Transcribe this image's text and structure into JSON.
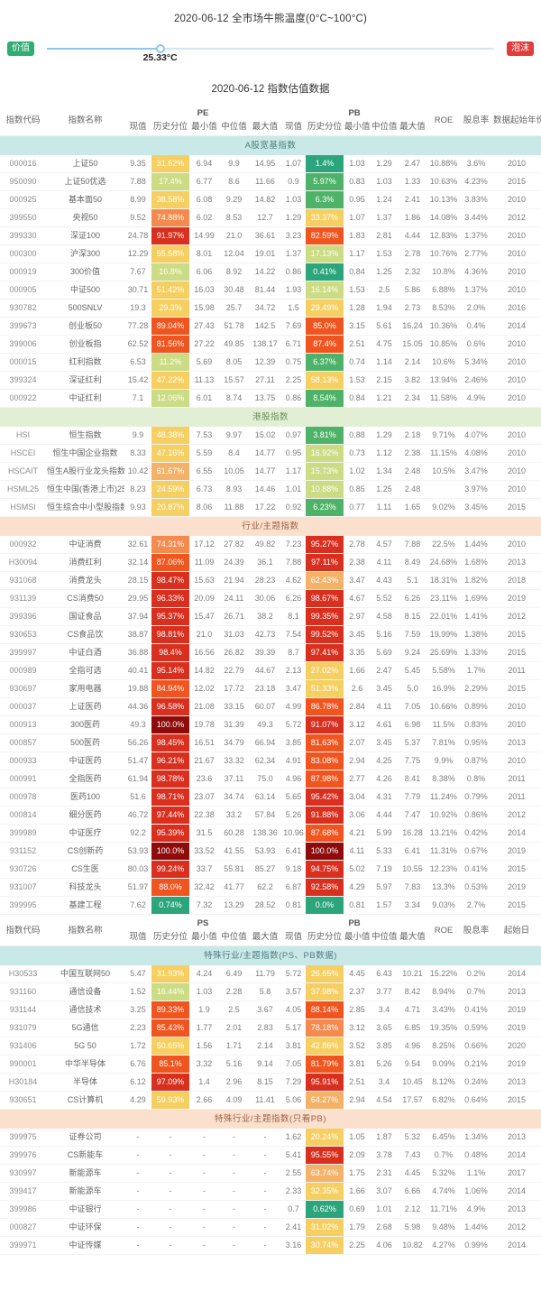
{
  "thermometer": {
    "title": "2020-06-12 全市场牛熊温度(0°C~100°C)",
    "left_badge": "价值",
    "right_badge": "泡沫",
    "value_label": "25.33°C",
    "percent": 25.33,
    "left_color": "#2fae71",
    "right_color": "#e23c3c"
  },
  "table_title": "2020-06-12 指数估值数据",
  "headers": {
    "first": {
      "code": "指数代码",
      "name": "指数名称",
      "group1": "PE",
      "group2": "PB",
      "sub": [
        "现值",
        "历史分位",
        "最小值",
        "中位值",
        "最大值"
      ],
      "roe": "ROE",
      "dividend": "股息率",
      "start": "数据起始年份"
    },
    "second": {
      "code": "指数代码",
      "name": "指数名称",
      "group1": "PS",
      "group2": "PB",
      "sub": [
        "现值",
        "历史分位",
        "最小值",
        "中位值",
        "最大值"
      ],
      "roe": "ROE",
      "dividend": "股息率",
      "start": "起始日"
    }
  },
  "palette": {
    "percentile_scale": [
      {
        "min": 99.99,
        "color": "#8e0b0b"
      },
      {
        "min": 90,
        "color": "#d92f1e"
      },
      {
        "min": 80,
        "color": "#f1551f"
      },
      {
        "min": 66,
        "color": "#f58a4e"
      },
      {
        "min": 60,
        "color": "#f4b269"
      },
      {
        "min": 18,
        "color": "#f6cf63"
      },
      {
        "min": 10,
        "color": "#cbdc85"
      },
      {
        "min": 3,
        "color": "#4fb269"
      },
      {
        "min": 0,
        "color": "#2ca57c"
      }
    ]
  },
  "sections": [
    {
      "header": "first",
      "title": "A股宽基指数",
      "theme": "cyan",
      "rows": [
        [
          "000016",
          "上证50",
          "9.35",
          "31.62%",
          "6.94",
          "9.9",
          "14.95",
          "1.07",
          "1.4%",
          "1.03",
          "1.29",
          "2.47",
          "10.88%",
          "3.6%",
          "2010"
        ],
        [
          "950090",
          "上证50优选",
          "7.88",
          "17.4%",
          "6.77",
          "8.6",
          "11.66",
          "0.9",
          "5.97%",
          "0.83",
          "1.03",
          "1.33",
          "10.63%",
          "4.23%",
          "2015"
        ],
        [
          "000925",
          "基本面50",
          "8.99",
          "38.58%",
          "6.08",
          "9.29",
          "14.82",
          "1.03",
          "6.3%",
          "0.95",
          "1.24",
          "2.41",
          "10.13%",
          "3.83%",
          "2010"
        ],
        [
          "399550",
          "央视50",
          "9.52",
          "74.88%",
          "6.02",
          "8.53",
          "12.7",
          "1.29",
          "33.37%",
          "1.07",
          "1.37",
          "1.86",
          "14.08%",
          "3.44%",
          "2012"
        ],
        [
          "399330",
          "深证100",
          "24.78",
          "91.97%",
          "14.99",
          "21.0",
          "36.61",
          "3.23",
          "82.59%",
          "1.83",
          "2.81",
          "4.44",
          "12.83%",
          "1.37%",
          "2010"
        ],
        [
          "000300",
          "沪深300",
          "12.29",
          "55.58%",
          "8.01",
          "12.04",
          "19.01",
          "1.37",
          "17.13%",
          "1.17",
          "1.53",
          "2.78",
          "10.76%",
          "2.77%",
          "2010"
        ],
        [
          "000919",
          "300价值",
          "7.67",
          "16.8%",
          "6.06",
          "8.92",
          "14.22",
          "0.86",
          "0.41%",
          "0.84",
          "1.25",
          "2.32",
          "10.8%",
          "4.36%",
          "2010"
        ],
        [
          "000905",
          "中证500",
          "30.71",
          "51.42%",
          "16.03",
          "30.48",
          "81.44",
          "1.93",
          "16.14%",
          "1.53",
          "2.5",
          "5.86",
          "6.88%",
          "1.37%",
          "2010"
        ],
        [
          "930782",
          "500SNLV",
          "19.3",
          "29.3%",
          "15.98",
          "25.7",
          "34.72",
          "1.5",
          "29.49%",
          "1.28",
          "1.94",
          "2.73",
          "8.53%",
          "2.0%",
          "2016"
        ],
        [
          "399673",
          "创业板50",
          "77.28",
          "89.04%",
          "27.43",
          "51.78",
          "142.5",
          "7.69",
          "85.0%",
          "3.15",
          "5.61",
          "16.24",
          "10.36%",
          "0.4%",
          "2014"
        ],
        [
          "399006",
          "创业板指",
          "62.52",
          "81.56%",
          "27.22",
          "49.85",
          "138.17",
          "6.71",
          "87.4%",
          "2.51",
          "4.75",
          "15.05",
          "10.85%",
          "0.6%",
          "2010"
        ],
        [
          "000015",
          "红利指数",
          "6.53",
          "11.2%",
          "5.69",
          "8.05",
          "12.39",
          "0.75",
          "6.37%",
          "0.74",
          "1.14",
          "2.14",
          "10.6%",
          "5.34%",
          "2010"
        ],
        [
          "399324",
          "深证红利",
          "15.42",
          "47.22%",
          "11.13",
          "15.57",
          "27.11",
          "2.25",
          "58.13%",
          "1.53",
          "2.15",
          "3.82",
          "13.94%",
          "2.46%",
          "2010"
        ],
        [
          "000922",
          "中证红利",
          "7.1",
          "12.06%",
          "6.01",
          "8.74",
          "13.75",
          "0.86",
          "8.54%",
          "0.84",
          "1.21",
          "2.34",
          "11.58%",
          "4.9%",
          "2010"
        ]
      ]
    },
    {
      "title": "港股指数",
      "theme": "green",
      "rows": [
        [
          "HSI",
          "恒生指数",
          "9.9",
          "48.38%",
          "7.53",
          "9.97",
          "15.02",
          "0.97",
          "3.81%",
          "0.88",
          "1.29",
          "2.18",
          "9.71%",
          "4.07%",
          "2010"
        ],
        [
          "HSCEI",
          "恒生中国企业指数",
          "8.33",
          "47.16%",
          "5.59",
          "8.4",
          "14.77",
          "0.95",
          "16.92%",
          "0.73",
          "1.12",
          "2.38",
          "11.15%",
          "4.08%",
          "2010"
        ],
        [
          "HSCAIT",
          "恒生A股行业龙头指数",
          "10.42",
          "61.67%",
          "6.55",
          "10.05",
          "14.77",
          "1.17",
          "15.73%",
          "1.02",
          "1.34",
          "2.48",
          "10.5%",
          "3.47%",
          "2010"
        ],
        [
          "HSML25",
          "恒生中国(香港上市)25指数",
          "8.23",
          "24.59%",
          "6.73",
          "8.93",
          "14.46",
          "1.01",
          "10.88%",
          "0.85",
          "1.25",
          "2.48",
          "",
          "3.97%",
          "2010"
        ],
        [
          "HSMSI",
          "恒生综合中小型股指数",
          "9.93",
          "20.87%",
          "8.06",
          "11.88",
          "17.22",
          "0.92",
          "6.23%",
          "0.77",
          "1.11",
          "1.65",
          "9.02%",
          "3.45%",
          "2015"
        ]
      ]
    },
    {
      "title": "行业/主题指数",
      "theme": "peach",
      "rows": [
        [
          "000932",
          "中证消费",
          "32.61",
          "74.31%",
          "17.12",
          "27.82",
          "49.82",
          "7.23",
          "95.27%",
          "2.78",
          "4.57",
          "7.88",
          "22.5%",
          "1.44%",
          "2010"
        ],
        [
          "H30094",
          "消费红利",
          "32.14",
          "87.06%",
          "11.09",
          "24.39",
          "36.1",
          "7.88",
          "97.11%",
          "2.38",
          "4.11",
          "8.49",
          "24.68%",
          "1.68%",
          "2013"
        ],
        [
          "931068",
          "消费龙头",
          "28.15",
          "98.47%",
          "15.63",
          "21.94",
          "28.23",
          "4.62",
          "62.43%",
          "3.47",
          "4.43",
          "5.1",
          "18.31%",
          "1.82%",
          "2018"
        ],
        [
          "931139",
          "CS消费50",
          "29.95",
          "96.33%",
          "20.09",
          "24.11",
          "30.06",
          "6.26",
          "98.67%",
          "4.67",
          "5.52",
          "6.26",
          "23.11%",
          "1.69%",
          "2019"
        ],
        [
          "399396",
          "国证食品",
          "37.94",
          "95.37%",
          "15.47",
          "26.71",
          "38.2",
          "8.1",
          "99.35%",
          "2.97",
          "4.58",
          "8.15",
          "22.01%",
          "1.41%",
          "2012"
        ],
        [
          "930653",
          "CS食品饮",
          "38.87",
          "98.81%",
          "21.0",
          "31.03",
          "42.73",
          "7.54",
          "99.52%",
          "3.45",
          "5.16",
          "7.59",
          "19.99%",
          "1.38%",
          "2015"
        ],
        [
          "399997",
          "中证白酒",
          "36.88",
          "98.4%",
          "16.56",
          "26.82",
          "39.39",
          "8.7",
          "97.41%",
          "3.35",
          "5.69",
          "9.24",
          "25.69%",
          "1.33%",
          "2015"
        ],
        [
          "000989",
          "全指可选",
          "40.41",
          "95.14%",
          "14.82",
          "22.79",
          "44.67",
          "2.13",
          "27.02%",
          "1.66",
          "2.47",
          "5.45",
          "5.58%",
          "1.7%",
          "2011"
        ],
        [
          "930697",
          "家用电器",
          "19.88",
          "84.94%",
          "12.02",
          "17.72",
          "23.18",
          "3.47",
          "51.33%",
          "2.6",
          "3.45",
          "5.0",
          "16.9%",
          "2.29%",
          "2015"
        ],
        [
          "000037",
          "上证医药",
          "44.36",
          "96.58%",
          "21.08",
          "33.15",
          "60.07",
          "4.99",
          "86.78%",
          "2.84",
          "4.11",
          "7.05",
          "10.66%",
          "0.89%",
          "2010"
        ],
        [
          "000913",
          "300医药",
          "49.3",
          "100.0%",
          "19.78",
          "31.39",
          "49.3",
          "5.72",
          "91.07%",
          "3.12",
          "4.61",
          "6.98",
          "11.5%",
          "0.83%",
          "2010"
        ],
        [
          "000857",
          "500医药",
          "56.26",
          "98.45%",
          "16.51",
          "34.79",
          "66.94",
          "3.85",
          "81.63%",
          "2.07",
          "3.45",
          "5.37",
          "7.81%",
          "0.95%",
          "2013"
        ],
        [
          "000933",
          "中证医药",
          "51.47",
          "96.21%",
          "21.67",
          "33.32",
          "62.34",
          "4.91",
          "83.08%",
          "2.94",
          "4.25",
          "7.75",
          "9.9%",
          "0.87%",
          "2010"
        ],
        [
          "000991",
          "全指医药",
          "61.94",
          "98.78%",
          "23.6",
          "37.11",
          "75.0",
          "4.96",
          "87.98%",
          "2.77",
          "4.26",
          "8.41",
          "8.38%",
          "0.8%",
          "2011"
        ],
        [
          "000978",
          "医药100",
          "51.6",
          "98.71%",
          "23.07",
          "34.74",
          "63.14",
          "5.65",
          "95.42%",
          "3.04",
          "4.31",
          "7.79",
          "11.24%",
          "0.79%",
          "2011"
        ],
        [
          "000814",
          "细分医药",
          "46.72",
          "97.44%",
          "22.38",
          "33.2",
          "57.84",
          "5.26",
          "91.88%",
          "3.06",
          "4.44",
          "7.47",
          "10.92%",
          "0.86%",
          "2012"
        ],
        [
          "399989",
          "中证医疗",
          "92.2",
          "95.39%",
          "31.5",
          "60.28",
          "138.36",
          "10.96",
          "87.68%",
          "4.21",
          "5.99",
          "16.28",
          "13.21%",
          "0.42%",
          "2014"
        ],
        [
          "931152",
          "CS创新药",
          "53.93",
          "100.0%",
          "33.52",
          "41.55",
          "53.93",
          "6.41",
          "100.0%",
          "4.11",
          "5.33",
          "6.41",
          "11.31%",
          "0.67%",
          "2019"
        ],
        [
          "930726",
          "CS生医",
          "80.03",
          "99.24%",
          "33.7",
          "55.81",
          "85.27",
          "9.18",
          "94.75%",
          "5.02",
          "7.19",
          "10.55",
          "12.23%",
          "0.41%",
          "2015"
        ],
        [
          "931007",
          "科技龙头",
          "51.97",
          "88.0%",
          "32.42",
          "41.77",
          "62.2",
          "6.87",
          "92.58%",
          "4.29",
          "5.97",
          "7.83",
          "13.3%",
          "0.53%",
          "2019"
        ],
        [
          "399995",
          "基建工程",
          "7.62",
          "0.74%",
          "7.32",
          "13.29",
          "28.52",
          "0.81",
          "0.0%",
          "0.81",
          "1.57",
          "3.34",
          "9.03%",
          "2.7%",
          "2015"
        ]
      ]
    },
    {
      "header": "second",
      "title": "特殊行业/主题指数(PS、PB数据)",
      "theme": "cyan",
      "rows": [
        [
          "H30533",
          "中国互联网50",
          "5.47",
          "31.93%",
          "4.24",
          "6.49",
          "11.79",
          "5.72",
          "26.65%",
          "4.45",
          "6.43",
          "10.21",
          "15.22%",
          "0.2%",
          "2014"
        ],
        [
          "931160",
          "通信设备",
          "1.52",
          "16.44%",
          "1.03",
          "2.28",
          "5.8",
          "3.57",
          "37.98%",
          "2.37",
          "3.77",
          "8.42",
          "8.94%",
          "0.7%",
          "2013"
        ],
        [
          "931144",
          "通信技术",
          "3.25",
          "89.33%",
          "1.9",
          "2.5",
          "3.67",
          "4.05",
          "88.14%",
          "2.85",
          "3.4",
          "4.71",
          "3.43%",
          "0.41%",
          "2019"
        ],
        [
          "931079",
          "5G通信",
          "2.23",
          "85.43%",
          "1.77",
          "2.01",
          "2.83",
          "5.17",
          "78.18%",
          "3.12",
          "3.65",
          "6.85",
          "19.35%",
          "0.59%",
          "2019"
        ],
        [
          "931406",
          "5G 50",
          "1.72",
          "50.65%",
          "1.56",
          "1.71",
          "2.14",
          "3.81",
          "42.86%",
          "3.52",
          "3.85",
          "4.96",
          "8.25%",
          "0.66%",
          "2020"
        ],
        [
          "990001",
          "中华半导体",
          "6.76",
          "85.1%",
          "3.32",
          "5.16",
          "9.14",
          "7.05",
          "81.79%",
          "3.81",
          "5.26",
          "9.54",
          "9.09%",
          "0.21%",
          "2019"
        ],
        [
          "H30184",
          "半导体",
          "6.12",
          "97.09%",
          "1.4",
          "2.96",
          "8.15",
          "7.29",
          "95.91%",
          "2.51",
          "3.4",
          "10.45",
          "8.12%",
          "0.24%",
          "2013"
        ],
        [
          "930651",
          "CS计算机",
          "4.29",
          "59.93%",
          "2.66",
          "4.09",
          "11.41",
          "5.06",
          "64.27%",
          "2.94",
          "4.54",
          "17.57",
          "6.82%",
          "0.64%",
          "2015"
        ]
      ]
    },
    {
      "title": "特殊行业/主题指数(只看PB)",
      "theme": "peach",
      "rows": [
        [
          "399975",
          "证券公司",
          "-",
          "-",
          "-",
          "-",
          "-",
          "1.62",
          "20.24%",
          "1.05",
          "1.87",
          "5.32",
          "6.45%",
          "1.34%",
          "2013"
        ],
        [
          "399976",
          "CS新能车",
          "-",
          "-",
          "-",
          "-",
          "-",
          "5.41",
          "95.55%",
          "2.09",
          "3.78",
          "7.43",
          "0.7%",
          "0.48%",
          "2014"
        ],
        [
          "930997",
          "新能源车",
          "-",
          "-",
          "-",
          "-",
          "-",
          "2.55",
          "63.74%",
          "1.75",
          "2.31",
          "4.45",
          "5.32%",
          "1.1%",
          "2017"
        ],
        [
          "399417",
          "新能源车",
          "-",
          "-",
          "-",
          "-",
          "-",
          "2.33",
          "32.35%",
          "1.66",
          "3.07",
          "6.66",
          "4.74%",
          "1.06%",
          "2014"
        ],
        [
          "399986",
          "中证银行",
          "-",
          "-",
          "-",
          "-",
          "-",
          "0.7",
          "0.62%",
          "0.69",
          "1.01",
          "2.12",
          "11.71%",
          "4.9%",
          "2013"
        ],
        [
          "000827",
          "中证环保",
          "-",
          "-",
          "-",
          "-",
          "-",
          "2.41",
          "31.02%",
          "1.79",
          "2.68",
          "5.98",
          "9.48%",
          "1.44%",
          "2012"
        ],
        [
          "399971",
          "中证传媒",
          "-",
          "-",
          "-",
          "-",
          "-",
          "3.16",
          "30.74%",
          "2.25",
          "4.06",
          "10.82",
          "4.27%",
          "0.99%",
          "2014"
        ]
      ]
    }
  ]
}
